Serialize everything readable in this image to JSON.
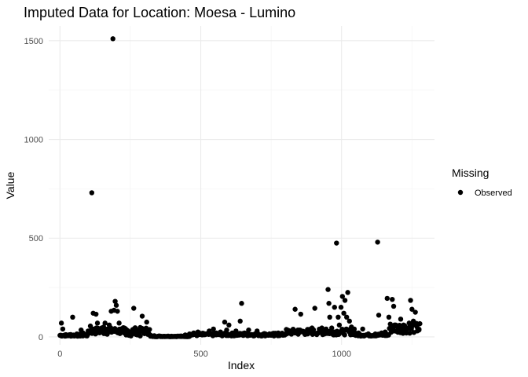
{
  "chart_data": {
    "type": "scatter",
    "title": "Imputed Data for Location: Moesa - Lumino",
    "xlabel": "Index",
    "ylabel": "Value",
    "xlim": [
      -40,
      1330
    ],
    "ylim": [
      -40,
      1575
    ],
    "x_ticks": [
      0,
      500,
      1000
    ],
    "y_ticks": [
      0,
      500,
      1000,
      1500
    ],
    "grid": true,
    "legend": {
      "title": "Missing",
      "position": "right",
      "entries": [
        "Observed"
      ]
    },
    "series": [
      {
        "name": "Observed",
        "color": "#000000",
        "points": [
          [
            5,
            70
          ],
          [
            10,
            40
          ],
          [
            18,
            10
          ],
          [
            22,
            5
          ],
          [
            30,
            8
          ],
          [
            38,
            12
          ],
          [
            45,
            100
          ],
          [
            52,
            6
          ],
          [
            60,
            15
          ],
          [
            68,
            10
          ],
          [
            75,
            35
          ],
          [
            82,
            20
          ],
          [
            90,
            12
          ],
          [
            100,
            30
          ],
          [
            108,
            55
          ],
          [
            113,
            730
          ],
          [
            118,
            120
          ],
          [
            122,
            30
          ],
          [
            128,
            115
          ],
          [
            133,
            70
          ],
          [
            140,
            30
          ],
          [
            148,
            45
          ],
          [
            155,
            50
          ],
          [
            160,
            70
          ],
          [
            168,
            40
          ],
          [
            175,
            60
          ],
          [
            182,
            130
          ],
          [
            188,
            1510
          ],
          [
            192,
            135
          ],
          [
            196,
            180
          ],
          [
            200,
            160
          ],
          [
            204,
            130
          ],
          [
            210,
            70
          ],
          [
            215,
            40
          ],
          [
            222,
            25
          ],
          [
            228,
            20
          ],
          [
            235,
            10
          ],
          [
            245,
            8
          ],
          [
            252,
            5
          ],
          [
            258,
            15
          ],
          [
            262,
            145
          ],
          [
            268,
            30
          ],
          [
            275,
            10
          ],
          [
            285,
            5
          ],
          [
            292,
            105
          ],
          [
            300,
            30
          ],
          [
            308,
            75
          ],
          [
            320,
            10
          ],
          [
            335,
            6
          ],
          [
            350,
            4
          ],
          [
            370,
            3
          ],
          [
            390,
            2
          ],
          [
            410,
            2
          ],
          [
            430,
            2
          ],
          [
            445,
            10
          ],
          [
            460,
            15
          ],
          [
            475,
            20
          ],
          [
            490,
            25
          ],
          [
            505,
            10
          ],
          [
            515,
            15
          ],
          [
            530,
            30
          ],
          [
            545,
            40
          ],
          [
            555,
            20
          ],
          [
            570,
            25
          ],
          [
            585,
            75
          ],
          [
            592,
            35
          ],
          [
            600,
            60
          ],
          [
            612,
            20
          ],
          [
            625,
            30
          ],
          [
            640,
            80
          ],
          [
            645,
            170
          ],
          [
            655,
            20
          ],
          [
            670,
            35
          ],
          [
            685,
            10
          ],
          [
            700,
            30
          ],
          [
            715,
            5
          ],
          [
            730,
            15
          ],
          [
            745,
            10
          ],
          [
            760,
            5
          ],
          [
            775,
            20
          ],
          [
            790,
            10
          ],
          [
            805,
            15
          ],
          [
            820,
            30
          ],
          [
            835,
            140
          ],
          [
            845,
            35
          ],
          [
            855,
            115
          ],
          [
            865,
            25
          ],
          [
            880,
            15
          ],
          [
            895,
            45
          ],
          [
            905,
            145
          ],
          [
            918,
            20
          ],
          [
            930,
            45
          ],
          [
            945,
            40
          ],
          [
            952,
            240
          ],
          [
            955,
            170
          ],
          [
            958,
            100
          ],
          [
            965,
            45
          ],
          [
            975,
            150
          ],
          [
            982,
            475
          ],
          [
            988,
            100
          ],
          [
            992,
            60
          ],
          [
            998,
            150
          ],
          [
            1003,
            205
          ],
          [
            1008,
            120
          ],
          [
            1012,
            185
          ],
          [
            1018,
            100
          ],
          [
            1022,
            225
          ],
          [
            1028,
            80
          ],
          [
            1035,
            50
          ],
          [
            1045,
            40
          ],
          [
            1060,
            20
          ],
          [
            1075,
            40
          ],
          [
            1090,
            10
          ],
          [
            1105,
            5
          ],
          [
            1120,
            15
          ],
          [
            1128,
            480
          ],
          [
            1132,
            110
          ],
          [
            1142,
            20
          ],
          [
            1155,
            25
          ],
          [
            1162,
            195
          ],
          [
            1168,
            100
          ],
          [
            1175,
            50
          ],
          [
            1180,
            190
          ],
          [
            1185,
            155
          ],
          [
            1192,
            60
          ],
          [
            1200,
            45
          ],
          [
            1210,
            90
          ],
          [
            1220,
            60
          ],
          [
            1230,
            40
          ],
          [
            1240,
            70
          ],
          [
            1245,
            185
          ],
          [
            1250,
            140
          ],
          [
            1255,
            80
          ],
          [
            1262,
            125
          ],
          [
            1268,
            50
          ],
          [
            1275,
            35
          ]
        ]
      }
    ]
  }
}
